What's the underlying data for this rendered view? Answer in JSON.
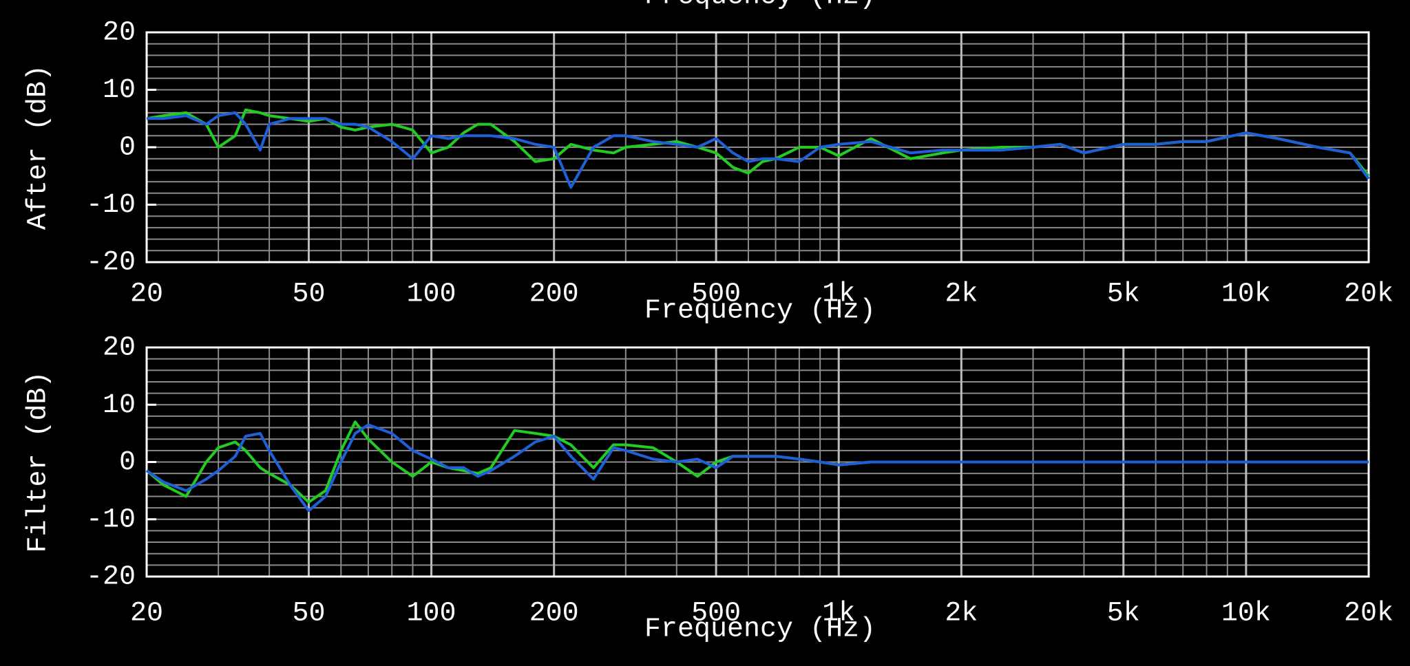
{
  "clipped_label": "Frequency (Hz)",
  "chart_data": [
    {
      "type": "line",
      "ylabel": "After (dB)",
      "xlabel": "Frequency (Hz)",
      "xscale": "log",
      "grid": true,
      "xlim": [
        20,
        20000
      ],
      "ylim": [
        -20,
        20
      ],
      "xticks": [
        20,
        50,
        100,
        200,
        500,
        {
          "value": 1000,
          "label": "1k"
        },
        {
          "value": 2000,
          "label": "2k"
        },
        {
          "value": 5000,
          "label": "5k"
        },
        {
          "value": 10000,
          "label": "10k"
        },
        {
          "value": 20000,
          "label": "20k"
        }
      ],
      "yticks": [
        -20,
        -10,
        0,
        10,
        20
      ],
      "xgrid": [
        20,
        30,
        40,
        50,
        60,
        70,
        80,
        90,
        100,
        200,
        300,
        400,
        500,
        600,
        700,
        800,
        900,
        1000,
        2000,
        3000,
        4000,
        5000,
        6000,
        7000,
        8000,
        9000,
        10000,
        20000
      ],
      "ygrid": [
        -20,
        -18,
        -16,
        -14,
        -12,
        -10,
        -8,
        -6,
        -4,
        -2,
        0,
        2,
        4,
        6,
        8,
        10,
        12,
        14,
        16,
        18,
        20
      ],
      "x": [
        20,
        22,
        25,
        28,
        30,
        33,
        35,
        38,
        40,
        45,
        50,
        55,
        60,
        65,
        70,
        80,
        90,
        100,
        110,
        120,
        130,
        140,
        160,
        180,
        200,
        220,
        250,
        280,
        300,
        350,
        400,
        450,
        500,
        550,
        600,
        650,
        700,
        800,
        900,
        1000,
        1200,
        1500,
        1800,
        2000,
        2500,
        3000,
        3500,
        4000,
        5000,
        6000,
        7000,
        8000,
        10000,
        12000,
        15000,
        18000,
        20000
      ],
      "series": [
        {
          "color": "#22cc22",
          "values": [
            5,
            5.5,
            6,
            4,
            0,
            2,
            6.5,
            6,
            5.5,
            5,
            4.5,
            5,
            3.5,
            3,
            3.5,
            4,
            3,
            -1,
            0,
            2.5,
            4,
            4,
            1,
            -2.5,
            -2,
            0.5,
            -0.5,
            -1,
            0,
            0.5,
            1,
            0,
            -1,
            -3.5,
            -4.5,
            -2.5,
            -2,
            0,
            0,
            -1.5,
            1.5,
            -2,
            -1,
            -0.5,
            0,
            0,
            0.5,
            -1,
            0.5,
            0.5,
            1,
            1,
            2.5,
            1.5,
            0,
            -1,
            -5
          ]
        },
        {
          "color": "#1f5fd8",
          "values": [
            5,
            5,
            5.5,
            4,
            5.5,
            6,
            4,
            -0.5,
            4,
            5,
            5,
            5,
            4,
            4,
            3.5,
            1,
            -2,
            2,
            1.5,
            2,
            2,
            2,
            1.5,
            0.5,
            0,
            -7,
            0,
            2,
            2,
            1,
            0.5,
            0,
            1.5,
            -1,
            -2.5,
            -2,
            -2,
            -2.5,
            0,
            0.5,
            1,
            -1,
            -0.5,
            -0.5,
            -0.5,
            0,
            0.5,
            -1,
            0.5,
            0.5,
            1,
            1,
            2.5,
            1.5,
            0,
            -1,
            -5.5
          ]
        }
      ]
    },
    {
      "type": "line",
      "ylabel": "Filter (dB)",
      "xlabel": "Frequency (Hz)",
      "xscale": "log",
      "grid": true,
      "xlim": [
        20,
        20000
      ],
      "ylim": [
        -20,
        20
      ],
      "xticks": [
        20,
        50,
        100,
        200,
        500,
        {
          "value": 1000,
          "label": "1k"
        },
        {
          "value": 2000,
          "label": "2k"
        },
        {
          "value": 5000,
          "label": "5k"
        },
        {
          "value": 10000,
          "label": "10k"
        },
        {
          "value": 20000,
          "label": "20k"
        }
      ],
      "yticks": [
        -20,
        -10,
        0,
        10,
        20
      ],
      "xgrid": [
        20,
        30,
        40,
        50,
        60,
        70,
        80,
        90,
        100,
        200,
        300,
        400,
        500,
        600,
        700,
        800,
        900,
        1000,
        2000,
        3000,
        4000,
        5000,
        6000,
        7000,
        8000,
        9000,
        10000,
        20000
      ],
      "ygrid": [
        -20,
        -18,
        -16,
        -14,
        -12,
        -10,
        -8,
        -6,
        -4,
        -2,
        0,
        2,
        4,
        6,
        8,
        10,
        12,
        14,
        16,
        18,
        20
      ],
      "x": [
        20,
        22,
        25,
        28,
        30,
        33,
        35,
        38,
        40,
        45,
        50,
        55,
        60,
        65,
        70,
        80,
        90,
        100,
        110,
        120,
        130,
        140,
        160,
        180,
        200,
        220,
        250,
        280,
        300,
        350,
        400,
        450,
        500,
        550,
        600,
        650,
        700,
        800,
        900,
        1000,
        1200,
        1500,
        1800,
        2000,
        2500,
        3000,
        3500,
        4000,
        5000,
        6000,
        7000,
        8000,
        10000,
        12000,
        15000,
        18000,
        20000
      ],
      "series": [
        {
          "color": "#22cc22",
          "values": [
            -1.5,
            -4,
            -6,
            0,
            2.5,
            3.5,
            2,
            -1,
            -2,
            -4,
            -7,
            -5,
            2,
            7,
            4,
            0,
            -2.5,
            0,
            -1,
            -1.5,
            -2,
            -1,
            5.5,
            5,
            4.5,
            3,
            -1,
            3,
            3,
            2.5,
            0,
            -2.5,
            0,
            1,
            1,
            1,
            1,
            0.5,
            0,
            -0.5,
            0,
            0,
            0,
            0,
            0,
            0,
            0,
            0,
            0,
            0,
            0,
            0,
            0,
            0,
            0,
            0,
            0
          ]
        },
        {
          "color": "#1f5fd8",
          "values": [
            -1.5,
            -3.5,
            -5,
            -3,
            -1.5,
            1,
            4.5,
            5,
            2,
            -4,
            -8.5,
            -6,
            0,
            5,
            6.5,
            5,
            2,
            0.5,
            -1,
            -1,
            -2.5,
            -1.5,
            1,
            3.5,
            4.5,
            1,
            -3,
            2.5,
            2,
            0.5,
            0,
            0.5,
            -1,
            1,
            1,
            1,
            1,
            0.5,
            0,
            -0.5,
            0,
            0,
            0,
            0,
            0,
            0,
            0,
            0,
            0,
            0,
            0,
            0,
            0,
            0,
            0,
            0,
            0
          ]
        }
      ]
    }
  ]
}
